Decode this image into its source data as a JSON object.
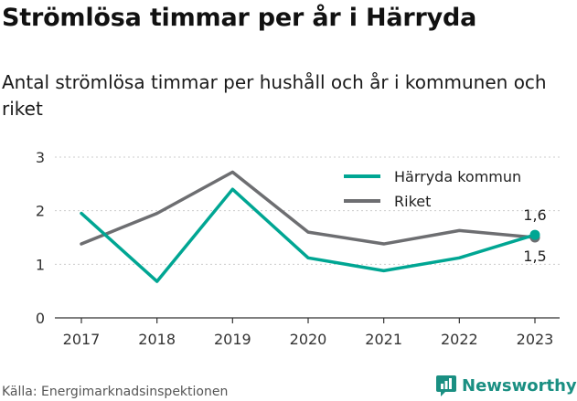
{
  "title": "Strömlösa timmar per år i Härryda",
  "subtitle": "Antal strömlösa timmar per hushåll och år i kommunen och riket",
  "source": "Källa: Energimarknadsinspektionen",
  "brand": "Newsworthy",
  "colors": {
    "harryda": "#00a693",
    "riket": "#6d6e71",
    "grid": "#cccccc",
    "axis": "#333333",
    "brand": "#1a8f82"
  },
  "chart_data": {
    "type": "line",
    "x": [
      "2017",
      "2018",
      "2019",
      "2020",
      "2021",
      "2022",
      "2023"
    ],
    "series": [
      {
        "name": "Härryda kommun",
        "values": [
          1.95,
          0.68,
          2.4,
          1.12,
          0.88,
          1.12,
          1.55
        ]
      },
      {
        "name": "Riket",
        "values": [
          1.38,
          1.95,
          2.72,
          1.6,
          1.38,
          1.63,
          1.5
        ]
      }
    ],
    "end_labels": [
      "1,6",
      "1,5"
    ],
    "yticks": [
      "0",
      "1",
      "2",
      "3"
    ],
    "ylim": [
      0,
      3
    ],
    "xlabel": "",
    "ylabel": "",
    "grid": true,
    "legend": "top-right"
  }
}
